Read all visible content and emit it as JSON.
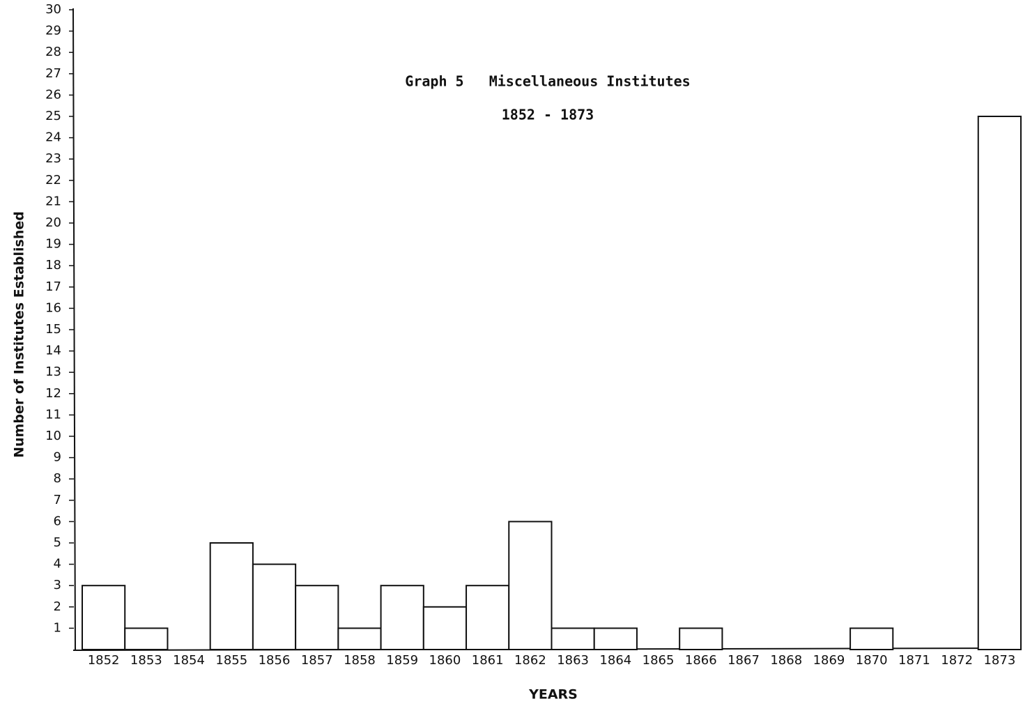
{
  "chart_data": {
    "type": "bar",
    "title": "Graph 5   Miscellaneous Institutes",
    "subtitle": "1852 - 1873",
    "x_label": "YEARS",
    "y_label": "Number of Institutes Established",
    "categories": [
      "1852",
      "1853",
      "1854",
      "1855",
      "1856",
      "1857",
      "1858",
      "1859",
      "1860",
      "1861",
      "1862",
      "1863",
      "1864",
      "1865",
      "1866",
      "1867",
      "1868",
      "1869",
      "1870",
      "1871",
      "1872",
      "1873"
    ],
    "values": [
      3,
      1,
      0,
      5,
      4,
      3,
      1,
      3,
      2,
      3,
      6,
      1,
      1,
      0,
      1,
      0,
      0,
      0,
      1,
      0,
      0,
      25
    ],
    "color": "#ffffff",
    "ylim": [
      0,
      30
    ],
    "yticks": [
      1,
      2,
      3,
      4,
      5,
      6,
      7,
      8,
      9,
      10,
      11,
      12,
      13,
      14,
      15,
      16,
      17,
      18,
      19,
      20,
      21,
      22,
      23,
      24,
      25,
      26,
      27,
      28,
      29,
      30
    ],
    "grid": false
  }
}
